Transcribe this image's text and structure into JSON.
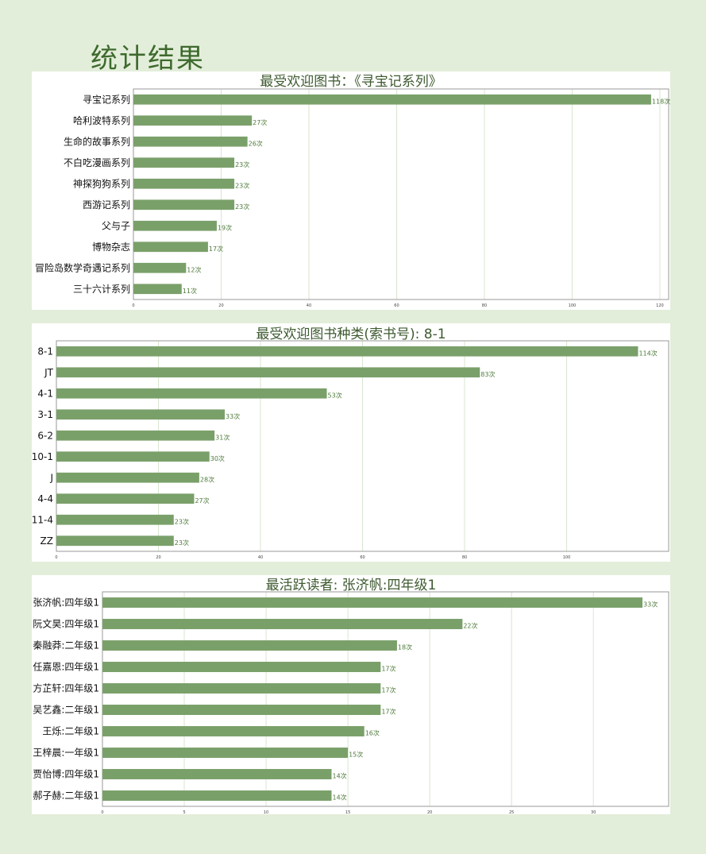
{
  "page": {
    "title": "统计结果"
  },
  "colors": {
    "background": "#e3eeda",
    "bar": "#7aa06a",
    "grid": "#d9e6cf",
    "value_text": "#4e7a3a",
    "title_text": "#3e5a30"
  },
  "chart_data": [
    {
      "type": "bar",
      "orientation": "horizontal",
      "title": "最受欢迎图书：《寻宝记系列》",
      "categories": [
        "寻宝记系列",
        "哈利波特系列",
        "生命的故事系列",
        "不白吃漫画系列",
        "神探狗狗系列",
        "西游记系列",
        "父与子",
        "博物杂志",
        "冒险岛数学奇遇记系列",
        "三十六计系列"
      ],
      "values": [
        118,
        27,
        26,
        23,
        23,
        23,
        19,
        17,
        12,
        11
      ],
      "value_labels": [
        "118次",
        "27次",
        "26次",
        "23次",
        "23次",
        "23次",
        "19次",
        "17次",
        "12次",
        "11次"
      ],
      "xlim": [
        0,
        122
      ],
      "xticks": [
        0,
        20,
        40,
        60,
        80,
        100,
        120
      ],
      "grid": true
    },
    {
      "type": "bar",
      "orientation": "horizontal",
      "title": "最受欢迎图书种类(索书号): 8-1",
      "categories": [
        "8-1",
        "JT",
        "4-1",
        "3-1",
        "6-2",
        "10-1",
        "J",
        "4-4",
        "11-4",
        "ZZ"
      ],
      "values": [
        114,
        83,
        53,
        33,
        31,
        30,
        28,
        27,
        23,
        23
      ],
      "value_labels": [
        "114次",
        "83次",
        "53次",
        "33次",
        "31次",
        "30次",
        "28次",
        "27次",
        "23次",
        "23次"
      ],
      "xlim": [
        0,
        120
      ],
      "xticks": [
        0,
        20,
        40,
        60,
        80,
        100
      ],
      "grid": true
    },
    {
      "type": "bar",
      "orientation": "horizontal",
      "title": "最活跃读者: 张济帆:四年级1",
      "categories": [
        "张济帆:四年级1",
        "阮文昊:四年级1",
        "秦融莽:二年级1",
        "任嘉恩:四年级1",
        "方芷轩:四年级1",
        "吴艺鑫:二年级1",
        "王烁:二年级1",
        "王梓晨:一年级1",
        "贾怡博:四年级1",
        "郝子赫:二年级1"
      ],
      "values": [
        33,
        22,
        18,
        17,
        17,
        17,
        16,
        15,
        14,
        14
      ],
      "value_labels": [
        "33次",
        "22次",
        "18次",
        "17次",
        "17次",
        "17次",
        "16次",
        "15次",
        "14次",
        "14次"
      ],
      "xlim": [
        0,
        34.6
      ],
      "xticks": [
        0,
        5,
        10,
        15,
        20,
        25,
        30
      ],
      "grid": true
    }
  ]
}
